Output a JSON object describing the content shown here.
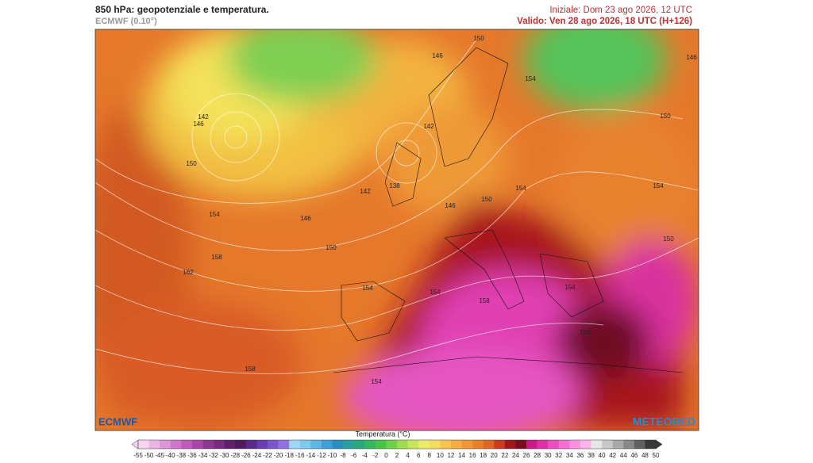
{
  "header": {
    "title": "850 hPa: geopotenziale e temperatura.",
    "model": "ECMWF (0.10°)",
    "initial": "Iniziale: Dom 23 ago 2026, 12 UTC",
    "valid": "Valido: Ven 28 ago 2026, 18 UTC (H+126)"
  },
  "map": {
    "contour_labels": [
      150,
      146,
      154,
      146,
      142,
      146,
      142,
      150,
      150,
      142,
      138,
      154,
      154,
      150,
      146,
      154,
      146,
      150,
      150,
      158,
      162,
      154,
      154,
      158,
      154,
      150,
      158,
      154
    ]
  },
  "logos": {
    "left": "ECMWF",
    "right": "METEORED"
  },
  "colorbar": {
    "title": "Temperatura (°C)",
    "ticks": [
      -55,
      -50,
      -45,
      -40,
      -38,
      -36,
      -34,
      -32,
      -30,
      -28,
      -26,
      -24,
      -22,
      -20,
      -18,
      -16,
      -14,
      -12,
      -10,
      -8,
      -6,
      -4,
      -2,
      0,
      2,
      4,
      6,
      8,
      10,
      12,
      14,
      16,
      18,
      20,
      22,
      24,
      26,
      28,
      30,
      32,
      34,
      36,
      38,
      40,
      42,
      44,
      46,
      48,
      50
    ],
    "colors": [
      "#f5d5f0",
      "#e9b5e3",
      "#dd95d6",
      "#cf76c9",
      "#bf5bbb",
      "#a845a8",
      "#913594",
      "#7a2a80",
      "#62206c",
      "#521a5c",
      "#5a2a8a",
      "#6a3db0",
      "#7b55cc",
      "#8f72dd",
      "#9fd8f5",
      "#7fc8ee",
      "#5fb5e3",
      "#3fa0d5",
      "#2a8ec0",
      "#2b9e9e",
      "#2aa97c",
      "#34b85e",
      "#48c447",
      "#6fd04a",
      "#9edc50",
      "#c9e55a",
      "#ecec6a",
      "#f6dc5c",
      "#f7c54e",
      "#f4ad42",
      "#ef9636",
      "#e97f2d",
      "#e06624",
      "#cc3b1e",
      "#a3151d",
      "#7e0a1f",
      "#d0188a",
      "#e22fa8",
      "#ee4cc2",
      "#f56fd3",
      "#f992e0",
      "#fcb5ea",
      "#e6e6e6",
      "#c8c8c8",
      "#a8a8a8",
      "#888888",
      "#606060",
      "#383838"
    ]
  }
}
